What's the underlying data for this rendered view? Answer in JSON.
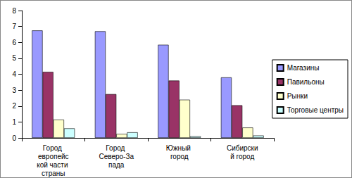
{
  "chart_data": {
    "type": "bar",
    "categories": [
      "Город европейской части страны",
      "Город Северо-Запада",
      "Южный город",
      "Сибирский город"
    ],
    "series": [
      {
        "name": "Магазины",
        "color": "#9999ff",
        "values": [
          6.75,
          6.7,
          5.85,
          3.8
        ]
      },
      {
        "name": "Павильоны",
        "color": "#993366",
        "values": [
          4.15,
          2.75,
          3.6,
          2.05
        ]
      },
      {
        "name": "Рынки",
        "color": "#ffffcc",
        "values": [
          1.15,
          0.25,
          2.4,
          0.65
        ]
      },
      {
        "name": "Торговые центры",
        "color": "#ccffff",
        "values": [
          0.6,
          0.35,
          0.1,
          0.15
        ]
      }
    ],
    "ylim": [
      0,
      8
    ],
    "yticks": [
      0,
      1,
      2,
      3,
      4,
      5,
      6,
      7,
      8
    ],
    "grid": false,
    "legend": "right"
  }
}
